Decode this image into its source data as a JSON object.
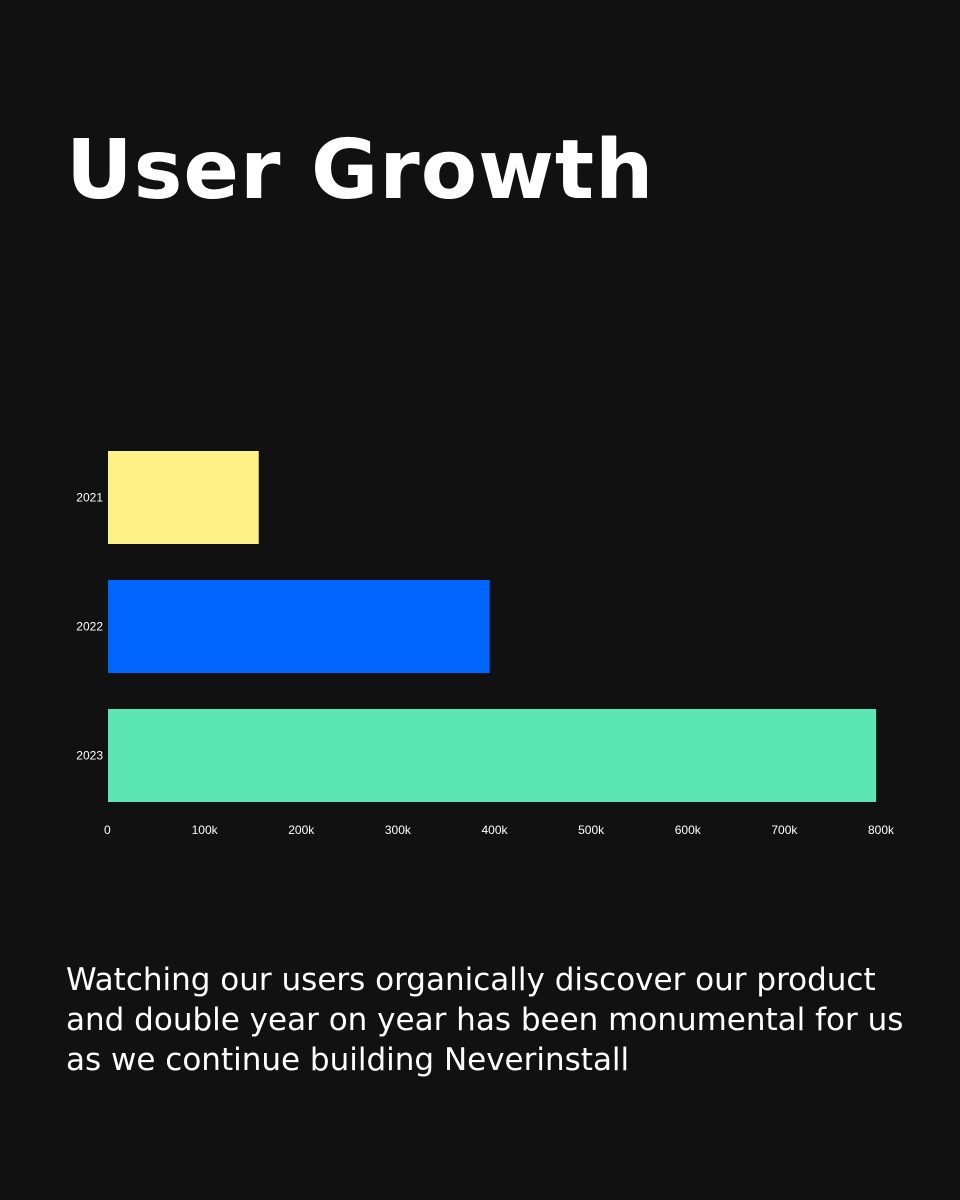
{
  "title": "User Growth",
  "caption": "Watching our users organically discover our product and double year on year has been monumental for us as we continue building Neverinstall",
  "chart_data": {
    "type": "bar",
    "orientation": "horizontal",
    "categories": [
      "2021",
      "2022",
      "2023"
    ],
    "values": [
      156000,
      395000,
      795000
    ],
    "colors": [
      "#FFF185",
      "#0066FF",
      "#5BE6B4"
    ],
    "xlim": [
      0,
      800000
    ],
    "x_ticks": [
      "0",
      "100k",
      "200k",
      "300k",
      "400k",
      "500k",
      "600k",
      "700k",
      "800k"
    ],
    "grid": false,
    "legend": "none"
  }
}
